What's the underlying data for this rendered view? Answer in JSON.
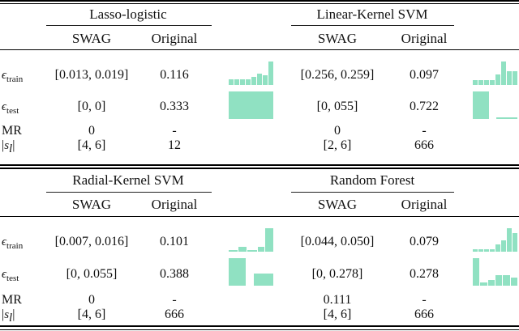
{
  "page": {
    "background": "#ffffff",
    "accent_color": "#90e1c2"
  },
  "row_labels": {
    "epsilon": "ϵ",
    "train_sub": "train",
    "test_sub": "test",
    "mr": "MR",
    "sl_open": "|",
    "sl_s": "s",
    "sl_sub": "l",
    "sl_close": "|"
  },
  "blocks": [
    {
      "title": "Lasso-logistic",
      "swag_header": "SWAG",
      "original_header": "Original",
      "train": {
        "swag": "[0.013, 0.019]",
        "original": "0.116"
      },
      "test": {
        "swag": "[0, 0]",
        "original": "0.333"
      },
      "mr": {
        "swag": "0",
        "original": "-"
      },
      "sl": {
        "swag": "[4, 6]",
        "original": "12"
      },
      "hist_train": [
        {
          "h": 0.23,
          "w": 1
        },
        {
          "h": 0.23,
          "w": 1
        },
        {
          "h": 0.23,
          "w": 1
        },
        {
          "h": 0.23,
          "w": 1
        },
        {
          "h": 0.36,
          "w": 1
        },
        {
          "h": 0.5,
          "w": 1
        },
        {
          "h": 0.41,
          "w": 1
        },
        {
          "h": 1,
          "w": 1
        }
      ],
      "hist_test": [
        {
          "h": 1,
          "w": 1
        }
      ]
    },
    {
      "title": "Linear-Kernel SVM",
      "swag_header": "SWAG",
      "original_header": "Original",
      "train": {
        "swag": "[0.256, 0.259]",
        "original": "0.097"
      },
      "test": {
        "swag": "[0, 055]",
        "original": "0.722"
      },
      "mr": {
        "swag": "0",
        "original": "-"
      },
      "sl": {
        "swag": "[2, 6]",
        "original": "666"
      },
      "hist_train": [
        {
          "h": 0.22,
          "w": 1
        },
        {
          "h": 0.22,
          "w": 1
        },
        {
          "h": 0.22,
          "w": 1
        },
        {
          "h": 0.22,
          "w": 1
        },
        {
          "h": 0.45,
          "w": 1
        },
        {
          "h": 1,
          "w": 1
        },
        {
          "h": 0.58,
          "w": 1
        },
        {
          "h": 0.58,
          "w": 1
        }
      ],
      "hist_test": [
        {
          "h": 1,
          "w": 2
        },
        {
          "h": 0,
          "w": 0.6
        },
        {
          "h": 0.06,
          "w": 2.6
        }
      ]
    },
    {
      "title": "Radial-Kernel SVM",
      "swag_header": "SWAG",
      "original_header": "Original",
      "train": {
        "swag": "[0.007, 0.016]",
        "original": "0.101"
      },
      "test": {
        "swag": "[0, 0.055]",
        "original": "0.388"
      },
      "mr": {
        "swag": "0",
        "original": "-"
      },
      "sl": {
        "swag": "[4, 6]",
        "original": "666"
      },
      "hist_train": [
        {
          "h": 0.07,
          "w": 1.4
        },
        {
          "h": 0.2,
          "w": 1.4
        },
        {
          "h": 0.07,
          "w": 1.6
        },
        {
          "h": 0.22,
          "w": 1.0
        },
        {
          "h": 1,
          "w": 1.4
        }
      ],
      "hist_test": [
        {
          "h": 1,
          "w": 2
        },
        {
          "h": 0,
          "w": 0.7
        },
        {
          "h": 0.45,
          "w": 2.3
        }
      ]
    },
    {
      "title": "Random Forest",
      "swag_header": "SWAG",
      "original_header": "Original",
      "train": {
        "swag": "[0.044, 0.050]",
        "original": "0.079"
      },
      "test": {
        "swag": "[0, 0.278]",
        "original": "0.278"
      },
      "mr": {
        "swag": "0.111",
        "original": "-"
      },
      "sl": {
        "swag": "[4, 6]",
        "original": "666"
      },
      "hist_train": [
        {
          "h": 0.12,
          "w": 1
        },
        {
          "h": 0.12,
          "w": 1
        },
        {
          "h": 0.12,
          "w": 1
        },
        {
          "h": 0.12,
          "w": 1
        },
        {
          "h": 0.3,
          "w": 1
        },
        {
          "h": 0.5,
          "w": 1
        },
        {
          "h": 1,
          "w": 1
        },
        {
          "h": 0.78,
          "w": 1
        }
      ],
      "hist_test": [
        {
          "h": 1,
          "w": 1
        },
        {
          "h": 0.12,
          "w": 1
        },
        {
          "h": 0.22,
          "w": 1
        },
        {
          "h": 0.38,
          "w": 1
        },
        {
          "h": 0.38,
          "w": 1
        },
        {
          "h": 0.28,
          "w": 1
        }
      ]
    }
  ]
}
